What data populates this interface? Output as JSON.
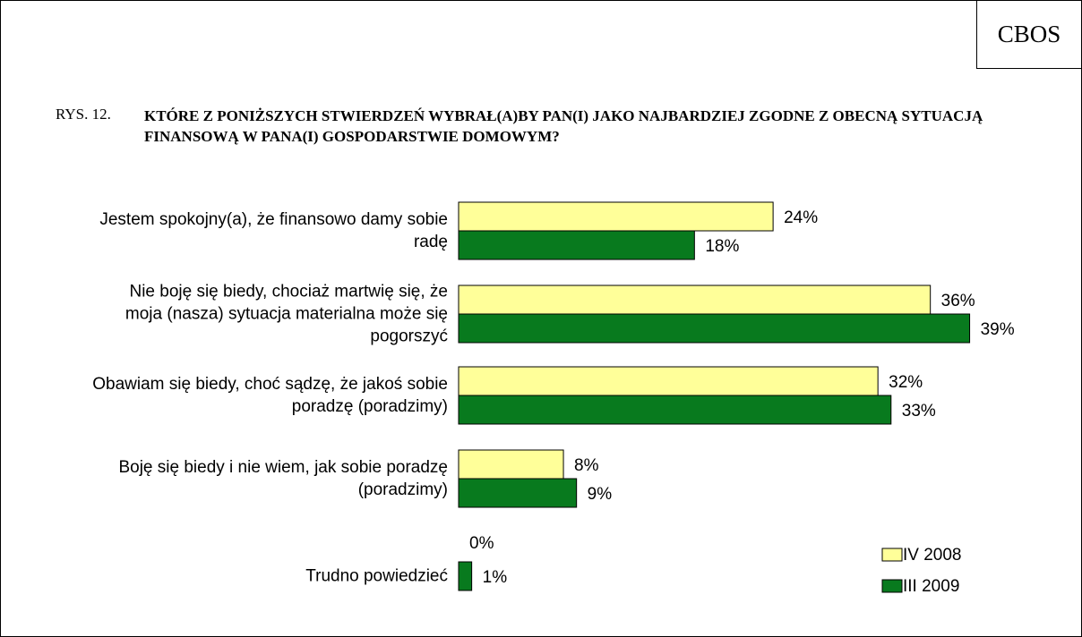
{
  "chart_data": {
    "type": "bar",
    "orientation": "horizontal",
    "source": "CBOS",
    "figure_label": "RYS. 12.",
    "title": "KTÓRE Z PONIŻSZYCH STWIERDZEŃ WYBRAŁ(A)BY PAN(I) JAKO NAJBARDZIEJ ZGODNE Z OBECNĄ SYTUACJĄ FINANSOWĄ W PANA(I) GOSPODARSTWIE DOMOWYM?",
    "categories": [
      "Jestem spokojny(a), że finansowo damy sobie radę",
      "Nie boję się biedy, chociaż martwię się, że moja (nasza) sytuacja materialna może się pogorszyć",
      "Obawiam się biedy, choć sądzę, że jakoś sobie poradzę (poradzimy)",
      "Boję się biedy i nie wiem, jak sobie poradzę (poradzimy)",
      "Trudno powiedzieć"
    ],
    "series": [
      {
        "name": "IV 2008",
        "color": "#ffff99",
        "values": [
          24,
          36,
          32,
          8,
          0
        ],
        "value_labels": [
          "24%",
          "36%",
          "32%",
          "8%",
          "0%"
        ]
      },
      {
        "name": "III 2009",
        "color": "#087a1e",
        "values": [
          18,
          39,
          33,
          9,
          1
        ],
        "value_labels": [
          "18%",
          "39%",
          "33%",
          "9%",
          "1%"
        ]
      }
    ],
    "legend": "bottom-right"
  }
}
